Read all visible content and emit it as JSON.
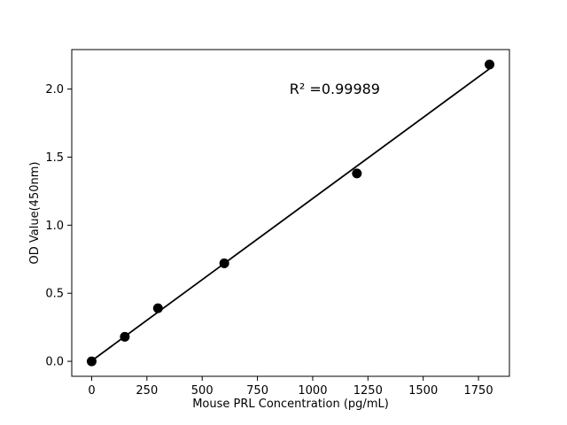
{
  "figure": {
    "background": "#ffffff",
    "foreground": "#000000"
  },
  "chart_data": {
    "type": "scatter",
    "title": "",
    "xlabel": "Mouse PRL Concentration (pg/mL)",
    "ylabel": "OD Value(450nm)",
    "x": [
      0,
      150,
      300,
      600,
      1200,
      1800
    ],
    "y": [
      0.0,
      0.18,
      0.39,
      0.72,
      1.38,
      2.18
    ],
    "fit_line": {
      "x": [
        0,
        1800
      ],
      "y": [
        0.004,
        2.149
      ]
    },
    "annotation": {
      "text": "R² =0.99989",
      "x": 1100,
      "y": 2.0
    },
    "xlim": [
      -90,
      1890
    ],
    "ylim": [
      -0.11,
      2.29
    ],
    "xticks": [
      0,
      250,
      500,
      750,
      1000,
      1250,
      1500,
      1750
    ],
    "xtick_labels": [
      "0",
      "250",
      "500",
      "750",
      "1000",
      "1250",
      "1500",
      "1750"
    ],
    "yticks": [
      0,
      0.5,
      1.0,
      1.5,
      2.0
    ],
    "ytick_labels": [
      "0.0",
      "0.5",
      "1.0",
      "1.5",
      "2.0"
    ],
    "grid": false,
    "legend_position": "none",
    "marker_color": "#000000",
    "marker_radius": 5.5,
    "line_color": "#000000",
    "line_width": 1.8
  }
}
